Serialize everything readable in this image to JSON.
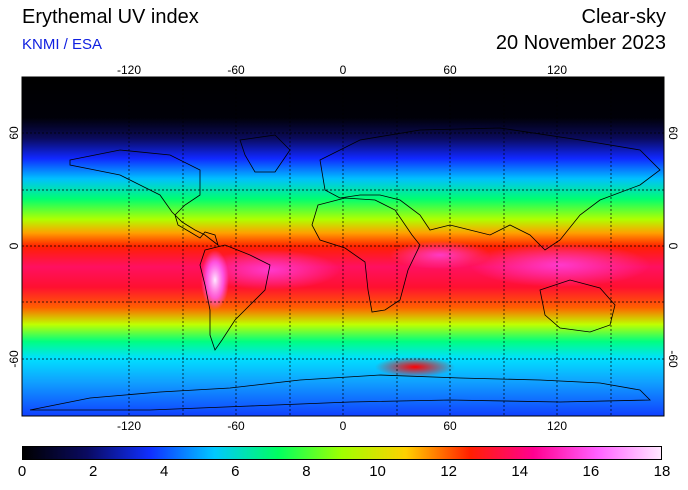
{
  "header": {
    "title": "Erythemal UV index",
    "credit": "KNMI / ESA",
    "condition": "Clear-sky",
    "date": "20 November 2023"
  },
  "map": {
    "projection": "equirectangular",
    "lon_ticks_top": [
      "-120",
      "-60",
      "0",
      "60",
      "120"
    ],
    "lon_ticks_bottom": [
      "-120",
      "-60",
      "0",
      "60",
      "120"
    ],
    "lat_ticks_left": [
      "60",
      "0",
      "-60"
    ],
    "lat_ticks_right": [
      "60",
      "0",
      "-60"
    ],
    "grid": "dashed every 30 degrees"
  },
  "colorbar": {
    "min": 0,
    "max": 18,
    "tick_labels": [
      "0",
      "2",
      "4",
      "6",
      "8",
      "10",
      "12",
      "14",
      "16",
      "18"
    ],
    "colors": [
      "#000000",
      "#0a0a60",
      "#1030ff",
      "#00c8ff",
      "#00ff60",
      "#a0ff00",
      "#ffd000",
      "#ff2000",
      "#ff0090",
      "#ff60ff",
      "#ffe8ff"
    ]
  }
}
